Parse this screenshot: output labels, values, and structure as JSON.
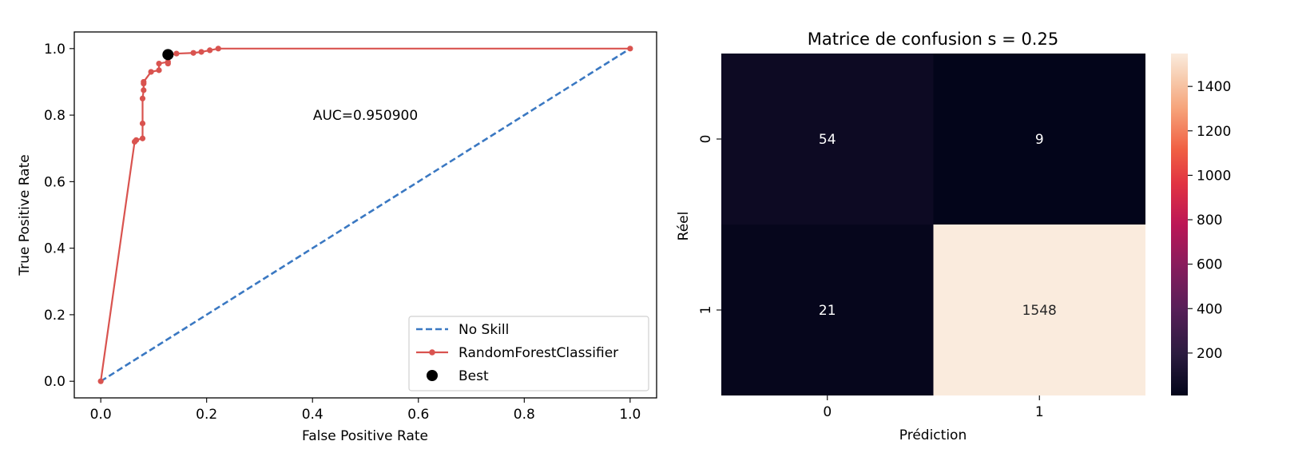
{
  "chart_data": [
    {
      "type": "line",
      "title": "",
      "xlabel": "False Positive Rate",
      "ylabel": "True Positive Rate",
      "xlim": [
        -0.05,
        1.05
      ],
      "ylim": [
        -0.05,
        1.05
      ],
      "xticks": [
        "0.0",
        "0.2",
        "0.4",
        "0.6",
        "0.8",
        "1.0"
      ],
      "yticks": [
        "0.0",
        "0.2",
        "0.4",
        "0.6",
        "0.8",
        "1.0"
      ],
      "grid": false,
      "legend_position": "lower right",
      "annotation": "AUC=0.950900",
      "series": [
        {
          "name": "No Skill",
          "style": "dashed",
          "color": "#3a78c2",
          "x": [
            0,
            1
          ],
          "y": [
            0,
            1
          ]
        },
        {
          "name": "RandomForestClassifier",
          "style": "solid-marker",
          "color": "#d9534f",
          "x": [
            0,
            0.064,
            0.067,
            0.079,
            0.079,
            0.079,
            0.081,
            0.081,
            0.081,
            0.095,
            0.11,
            0.11,
            0.127,
            0.127,
            0.13,
            0.143,
            0.175,
            0.19,
            0.206,
            0.222,
            1.0
          ],
          "y": [
            0,
            0.72,
            0.725,
            0.73,
            0.775,
            0.85,
            0.875,
            0.895,
            0.9,
            0.93,
            0.935,
            0.955,
            0.96,
            0.955,
            0.98,
            0.985,
            0.987,
            0.99,
            0.995,
            1.0,
            1.0
          ]
        },
        {
          "name": "Best",
          "style": "point",
          "color": "#000000",
          "x": [
            0.127
          ],
          "y": [
            0.982
          ]
        }
      ]
    },
    {
      "type": "heatmap",
      "title": "Matrice de confusion s = 0.25",
      "xlabel": "Prédiction",
      "ylabel": "Réel",
      "x_categories": [
        "0",
        "1"
      ],
      "y_categories": [
        "0",
        "1"
      ],
      "values": [
        [
          54,
          9
        ],
        [
          21,
          1548
        ]
      ],
      "colorbar": {
        "min": 9,
        "max": 1548,
        "ticks": [
          "200",
          "400",
          "600",
          "800",
          "1000",
          "1200",
          "1400"
        ]
      },
      "colormap": "rocket"
    }
  ]
}
